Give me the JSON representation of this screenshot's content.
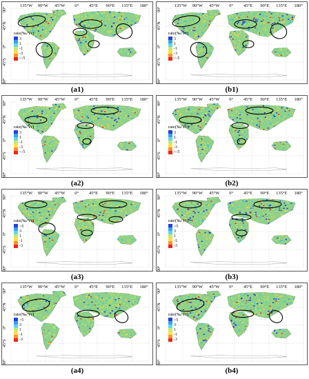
{
  "panels": [
    {
      "id": "a1",
      "caption": "(a1)",
      "legend_title": "rate(‰/Yr)",
      "legend_ticks": [
        "3",
        "1",
        "-1",
        "-3",
        "<-5"
      ]
    },
    {
      "id": "b1",
      "caption": "(b1)",
      "legend_title": "rate(‰/Yr)",
      "legend_ticks": [
        "3",
        "1",
        "-1",
        "-3",
        "<-5"
      ]
    },
    {
      "id": "a2",
      "caption": "(a2)",
      "legend_title": "rate(‰/Yr)",
      "legend_ticks": [
        "3",
        "1",
        "-1",
        "-3",
        "<-5"
      ]
    },
    {
      "id": "b2",
      "caption": "(b2)",
      "legend_title": "rate(‰/Yr)",
      "legend_ticks": [
        "3",
        "1",
        "-1",
        "-3",
        "<-5"
      ]
    },
    {
      "id": "a3",
      "caption": "(a3)",
      "legend_title": "rate(‰/Yr)",
      "legend_ticks": [
        ">5",
        "3",
        "1",
        "-1",
        "-3"
      ]
    },
    {
      "id": "b3",
      "caption": "(b3)",
      "legend_title": "rate(‰/Yr)",
      "legend_ticks": [
        ">5",
        "3",
        "1",
        "-1",
        "-3"
      ]
    },
    {
      "id": "a4",
      "caption": "(a4)",
      "legend_title": "rate(‰/Yr)",
      "legend_ticks": [
        ">5",
        "3",
        "1",
        "-1",
        "-3"
      ]
    },
    {
      "id": "b4",
      "caption": "(b4)",
      "legend_title": "rate(‰/Yr)",
      "legend_ticks": [
        ">5",
        "3",
        "1",
        "-1",
        "-3"
      ]
    }
  ],
  "axis": {
    "lon_labels": [
      "135°W",
      "90°W",
      "45°W",
      "0°",
      "45°E",
      "90°E",
      "135°E",
      "180°"
    ],
    "lat_labels": [
      "90°",
      "45°N",
      "0°",
      "45°S",
      "90°"
    ]
  },
  "colors": {
    "land_base": "#8fd18a",
    "high": "#1f3fd6",
    "mid": "#33c8e0",
    "neutral": "#b8e06a",
    "low": "#ffd23a",
    "lowest": "#e8301c",
    "ellipse": "#000000"
  }
}
